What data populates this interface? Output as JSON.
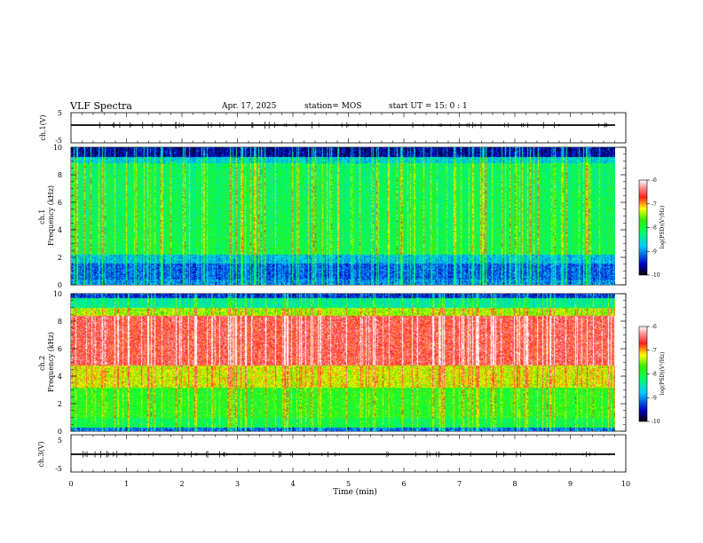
{
  "header": {
    "title": "VLF Spectra",
    "date": "Apr. 17, 2025",
    "station": "station= MOS",
    "start": "start  UT =   15: 0  : 1"
  },
  "colorbar": {
    "label": "log(PSD)(V²/Hz)",
    "ticks": [
      "-6",
      "-7",
      "-8",
      "-9",
      "-10"
    ],
    "range": [
      -10,
      -6
    ]
  },
  "chart_data": [
    {
      "type": "line",
      "panel": "ch1-waveform",
      "ylabel": "ch.1(V)",
      "ylim": [
        -5,
        5
      ],
      "yticks": [
        "5",
        "-5"
      ],
      "xlim": [
        0,
        10
      ],
      "series": [
        {
          "x": [
            0,
            9.8
          ],
          "y": [
            0,
            0
          ]
        }
      ]
    },
    {
      "type": "heatmap",
      "panel": "ch1-spectrogram",
      "ylabel": "ch.1 Frequency (kHz)",
      "ylim": [
        0,
        10
      ],
      "yticks": [
        "0",
        "2",
        "4",
        "6",
        "8",
        "10"
      ],
      "xlim": [
        0,
        10
      ],
      "data_xlim": [
        0,
        9.8
      ],
      "zrange": [
        -10,
        -6
      ]
    },
    {
      "type": "heatmap",
      "panel": "ch2-spectrogram",
      "ylabel": "ch.2 Frequency (kHz)",
      "ylim": [
        0,
        10
      ],
      "yticks": [
        "0",
        "2",
        "4",
        "6",
        "8",
        "10"
      ],
      "xlim": [
        0,
        10
      ],
      "data_xlim": [
        0,
        9.8
      ],
      "zrange": [
        -10,
        -6
      ]
    },
    {
      "type": "line",
      "panel": "ch3-waveform",
      "ylabel": "ch.3(V)",
      "ylim": [
        -5,
        5
      ],
      "yticks": [
        "5",
        "-5"
      ],
      "xlim": [
        0,
        10
      ],
      "xlabel": "Time  (min)",
      "xticks": [
        "0",
        "1",
        "2",
        "3",
        "4",
        "5",
        "6",
        "7",
        "8",
        "9",
        "10"
      ],
      "series": [
        {
          "x": [
            0,
            9.8
          ],
          "y": [
            0,
            0
          ]
        }
      ]
    }
  ],
  "colors": {
    "background": "#ffffff",
    "axis": "#000000"
  }
}
